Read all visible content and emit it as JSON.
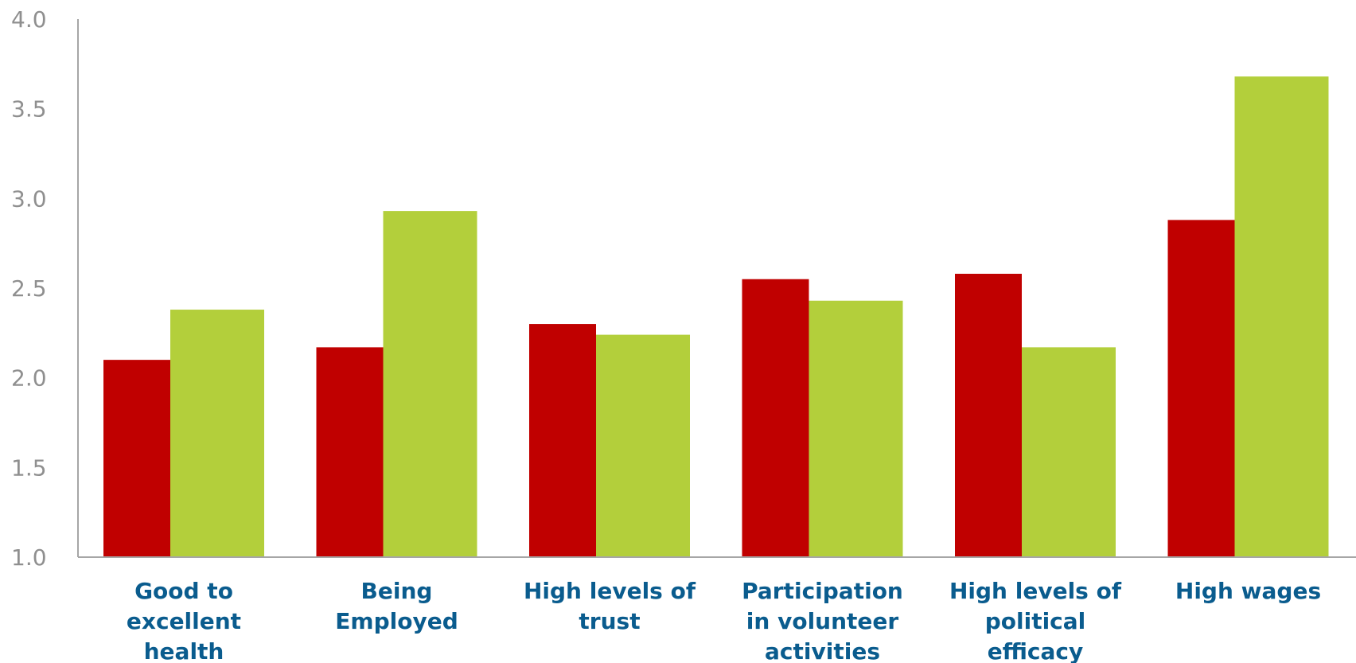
{
  "chart_data": {
    "type": "bar",
    "title": "",
    "xlabel": "",
    "ylabel": "",
    "ylim": [
      1.0,
      4.0
    ],
    "yticks": [
      "1.0",
      "1.5",
      "2.0",
      "2.5",
      "3.0",
      "3.5",
      "4.0"
    ],
    "grid": false,
    "legend": "none",
    "categories": [
      [
        "Good to",
        "excellent",
        "health"
      ],
      [
        "Being",
        "Employed"
      ],
      [
        "High levels of",
        "trust"
      ],
      [
        "Participation",
        "in volunteer",
        "activities"
      ],
      [
        "High levels of",
        "political",
        "efficacy"
      ],
      [
        "High wages"
      ]
    ],
    "series": [
      {
        "color": "#c00000",
        "values": [
          2.1,
          2.17,
          2.3,
          2.55,
          2.58,
          2.88
        ]
      },
      {
        "color": "#b3cf3b",
        "values": [
          2.38,
          2.93,
          2.24,
          2.43,
          2.17,
          3.68
        ]
      }
    ]
  }
}
